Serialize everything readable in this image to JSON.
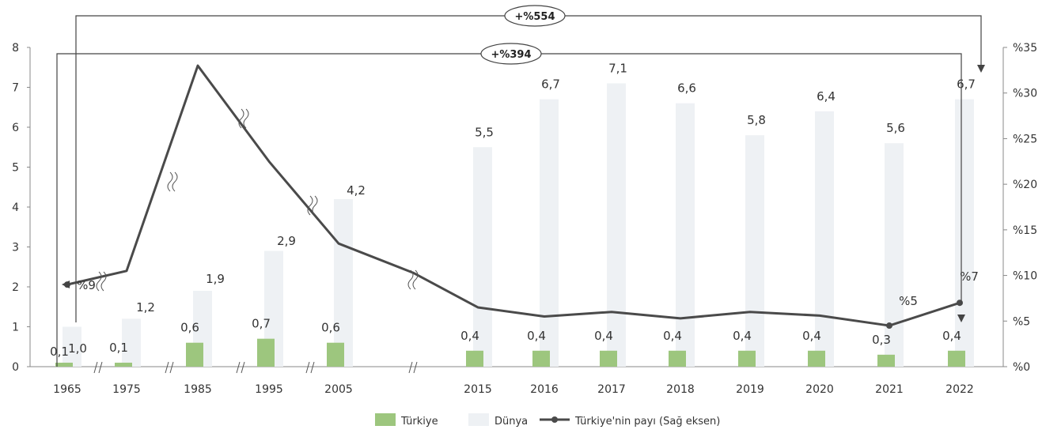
{
  "chart_data": {
    "type": "bar",
    "categories": [
      "1965",
      "1975",
      "1985",
      "1995",
      "2005",
      "",
      "2015",
      "2016",
      "2017",
      "2018",
      "2019",
      "2020",
      "2021",
      "2022"
    ],
    "series": [
      {
        "name": "Türkiye",
        "values": [
          0.1,
          0.1,
          0.6,
          0.7,
          0.6,
          null,
          0.4,
          0.4,
          0.4,
          0.4,
          0.4,
          0.4,
          0.3,
          0.4
        ],
        "labels": [
          "0,1",
          "0,1",
          "0,6",
          "0,7",
          "0,6",
          "",
          "0,4",
          "0,4",
          "0,4",
          "0,4",
          "0,4",
          "0,4",
          "0,3",
          "0,4"
        ],
        "color": "#9dc67e"
      },
      {
        "name": "Dünya",
        "values": [
          1.0,
          1.2,
          1.9,
          2.9,
          4.2,
          null,
          5.5,
          6.7,
          7.1,
          6.6,
          5.8,
          6.4,
          5.6,
          6.7
        ],
        "labels": [
          "1,0",
          "1,2",
          "1,9",
          "2,9",
          "4,2",
          "",
          "5,5",
          "6,7",
          "7,1",
          "6,6",
          "5,8",
          "6,4",
          "5,6",
          "6,7"
        ],
        "color": "#eef1f4"
      },
      {
        "name": "Türkiye'nin payı (Sağ eksen)",
        "values": [
          9,
          10.5,
          33,
          22.5,
          13.5,
          10.3,
          6.5,
          5.5,
          6.0,
          5.3,
          6.0,
          5.6,
          4.5,
          7.0
        ],
        "color": "#4a4a4a"
      }
    ],
    "line_point_labels": {
      "0": "%9",
      "12": "%5",
      "13": "%7"
    },
    "ylim": [
      0,
      8
    ],
    "y_ticks": [
      "0",
      "1",
      "2",
      "3",
      "4",
      "5",
      "6",
      "7",
      "8"
    ],
    "y2lim": [
      0,
      35
    ],
    "y2_ticks": [
      "%0",
      "%5",
      "%10",
      "%15",
      "%20",
      "%25",
      "%30",
      "%35"
    ],
    "legend_position": "bottom",
    "annotations": [
      "+%554",
      "+%394"
    ]
  }
}
